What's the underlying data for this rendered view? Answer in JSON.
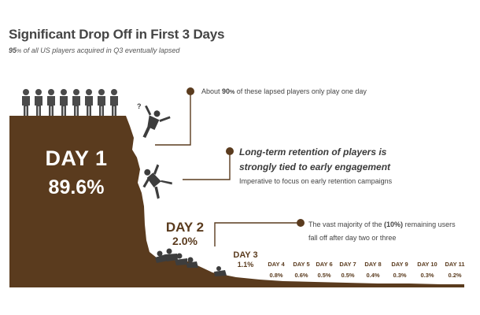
{
  "page": {
    "title": "Significant Drop Off in First 3 Days",
    "subtitle_prefix": "95",
    "subtitle_unit": "%",
    "subtitle_rest": " of all US players acquired in Q3 eventually lapsed"
  },
  "annotations": {
    "note1_pre": "About ",
    "note1_bold": "90",
    "note1_unit": "%",
    "note1_post": " of these lapsed players only play one day",
    "note2_line1": "Long-term retention of players is",
    "note2_line2": "strongly tied to early engagement",
    "note2_sub": "Imperative to focus on early retention campaigns",
    "note3_pre": "The vast majority of the ",
    "note3_bold": "(10%)",
    "note3_post": " remaining users",
    "note3_line2": "fall off after day two or three"
  },
  "colors": {
    "cliff": "#5a3b1e",
    "people": "#4a4a4a",
    "accent_dot": "#5a3b1e",
    "line": "#5a3b1e"
  },
  "chart_data": {
    "type": "bar",
    "title": "Significant Drop Off in First 3 Days",
    "categories": [
      "DAY 1",
      "DAY 2",
      "DAY 3",
      "DAY 4",
      "DAY 5",
      "DAY 6",
      "DAY 7",
      "DAY 8",
      "DAY 9",
      "DAY 10",
      "DAY 11"
    ],
    "values": [
      89.6,
      2.0,
      1.1,
      0.8,
      0.6,
      0.5,
      0.5,
      0.4,
      0.3,
      0.3,
      0.2
    ],
    "labels": [
      "89.6%",
      "2.0%",
      "1.1%",
      "0.8%",
      "0.6%",
      "0.5%",
      "0.5%",
      "0.4%",
      "0.3%",
      "0.3%",
      "0.2%"
    ],
    "unit": "%"
  }
}
